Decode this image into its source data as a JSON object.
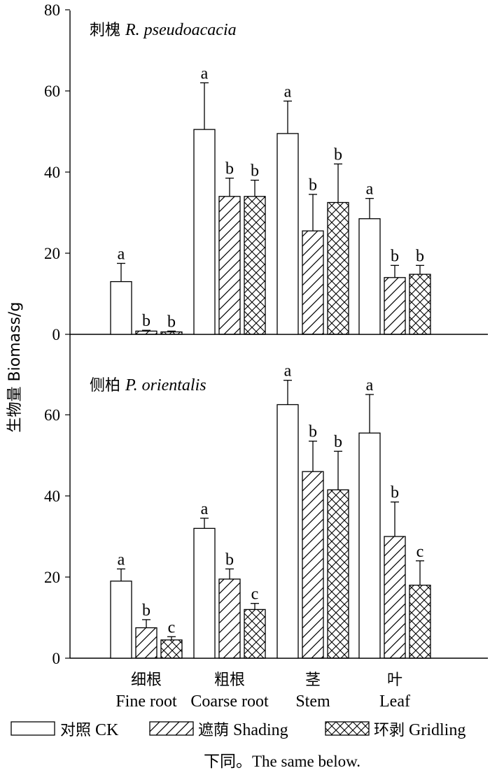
{
  "chart_data": {
    "type": "bar",
    "ylabel": "生物量 Biomass/g",
    "categories": [
      {
        "cn": "细根",
        "en": "Fine root"
      },
      {
        "cn": "粗根",
        "en": "Coarse root"
      },
      {
        "cn": "茎",
        "en": "Stem"
      },
      {
        "cn": "叶",
        "en": "Leaf"
      }
    ],
    "legend": [
      {
        "cn": "对照",
        "en": "CK",
        "pattern": "none"
      },
      {
        "cn": "遮荫",
        "en": "Shading",
        "pattern": "diagonal"
      },
      {
        "cn": "环剥",
        "en": "Gridling",
        "pattern": "crosshatch"
      }
    ],
    "panels": [
      {
        "cn": "刺槐",
        "en": "R. pseudoacacia",
        "ylim": [
          0,
          80
        ],
        "yticks": [
          0,
          20,
          40,
          60,
          80
        ],
        "series": [
          {
            "name": "CK",
            "values": [
              13.0,
              50.5,
              49.5,
              28.5
            ],
            "errors": [
              4.5,
              11.5,
              8.0,
              5.0
            ],
            "letters": [
              "a",
              "a",
              "a",
              "a"
            ]
          },
          {
            "name": "Shading",
            "values": [
              0.8,
              34.0,
              25.5,
              14.0
            ],
            "errors": [
              0.2,
              4.5,
              9.0,
              3.0
            ],
            "letters": [
              "b",
              "b",
              "b",
              "b"
            ]
          },
          {
            "name": "Gridling",
            "values": [
              0.6,
              34.0,
              32.5,
              14.8
            ],
            "errors": [
              0.2,
              4.0,
              9.5,
              2.2
            ],
            "letters": [
              "b",
              "b",
              "b",
              "b"
            ]
          }
        ]
      },
      {
        "cn": "侧柏",
        "en": "P. orientalis",
        "ylim": [
          0,
          80
        ],
        "yticks": [
          0,
          20,
          40,
          60
        ],
        "series": [
          {
            "name": "CK",
            "values": [
              19.0,
              32.0,
              62.5,
              55.5
            ],
            "errors": [
              3.0,
              2.5,
              6.0,
              9.5
            ],
            "letters": [
              "a",
              "a",
              "a",
              "a"
            ]
          },
          {
            "name": "Shading",
            "values": [
              7.5,
              19.5,
              46.0,
              30.0
            ],
            "errors": [
              2.0,
              2.5,
              7.5,
              8.5
            ],
            "letters": [
              "b",
              "b",
              "b",
              "b"
            ]
          },
          {
            "name": "Gridling",
            "values": [
              4.5,
              12.0,
              41.5,
              18.0
            ],
            "errors": [
              0.8,
              1.5,
              9.5,
              6.0
            ],
            "letters": [
              "c",
              "c",
              "b",
              "c"
            ]
          }
        ]
      }
    ],
    "note": "下同。The same below.",
    "colors": {
      "bar_fill": "#ffffff",
      "stroke": "#000000"
    }
  }
}
